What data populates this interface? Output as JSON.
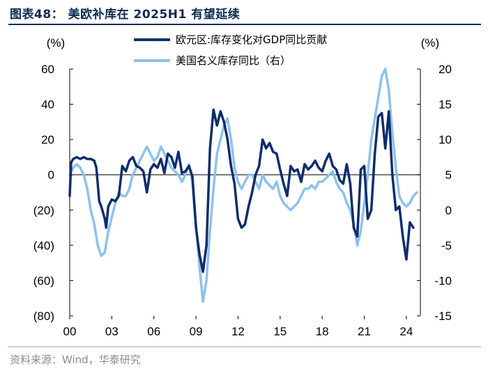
{
  "header": {
    "title": "图表48：  美欧补库在 2025H1 有望延续"
  },
  "footer": {
    "source": "资料来源：Wind，华泰研究"
  },
  "colors": {
    "series1": "#0d2d6b",
    "series2": "#8fc1ec",
    "title": "#0d2a54"
  },
  "chart_data": {
    "type": "line",
    "title": "美欧补库在 2025H1 有望延续",
    "y_left_unit": "(%)",
    "y_right_unit": "(%)",
    "y_left_range": [
      -80,
      60
    ],
    "y_right_range": [
      -15,
      20
    ],
    "y_left_ticks": [
      60,
      40,
      20,
      0,
      -20,
      -40,
      -60,
      -80
    ],
    "y_left_tick_labels": [
      "60",
      "40",
      "20",
      "0",
      "(20)",
      "(40)",
      "(60)",
      "(80)"
    ],
    "y_right_ticks": [
      20,
      15,
      10,
      5,
      0,
      -5,
      -10,
      -15
    ],
    "y_right_tick_labels": [
      "20",
      "15",
      "10",
      "5",
      "0",
      "-5",
      "-10",
      "-15"
    ],
    "x_range": [
      2000,
      2025
    ],
    "x_ticks": [
      2000,
      2003,
      2006,
      2009,
      2012,
      2015,
      2018,
      2021,
      2024
    ],
    "x_tick_labels": [
      "00",
      "03",
      "06",
      "09",
      "12",
      "15",
      "18",
      "21",
      "24"
    ],
    "legend": [
      "欧元区:库存变化对GDP同比贡献",
      "美国名义库存同比（右）"
    ],
    "series": [
      {
        "name": "欧元区:库存变化对GDP同比贡献",
        "axis": "left",
        "points": [
          [
            2000.0,
            -12
          ],
          [
            2000.1,
            7
          ],
          [
            2000.25,
            9
          ],
          [
            2000.5,
            10
          ],
          [
            2000.75,
            9
          ],
          [
            2001.0,
            10
          ],
          [
            2001.25,
            9
          ],
          [
            2001.5,
            9
          ],
          [
            2001.75,
            8
          ],
          [
            2001.9,
            4
          ],
          [
            2002.0,
            -5
          ],
          [
            2002.1,
            -15
          ],
          [
            2002.25,
            -18
          ],
          [
            2002.5,
            -25
          ],
          [
            2002.6,
            -30
          ],
          [
            2002.75,
            -18
          ],
          [
            2003.0,
            -14
          ],
          [
            2003.25,
            -15
          ],
          [
            2003.5,
            -12
          ],
          [
            2003.75,
            5
          ],
          [
            2004.0,
            2
          ],
          [
            2004.25,
            8
          ],
          [
            2004.5,
            10
          ],
          [
            2004.75,
            5
          ],
          [
            2005.0,
            4
          ],
          [
            2005.25,
            2
          ],
          [
            2005.5,
            -10
          ],
          [
            2005.75,
            3
          ],
          [
            2006.0,
            6
          ],
          [
            2006.25,
            4
          ],
          [
            2006.5,
            9
          ],
          [
            2006.75,
            1
          ],
          [
            2007.0,
            12
          ],
          [
            2007.25,
            10
          ],
          [
            2007.5,
            4
          ],
          [
            2007.75,
            13
          ],
          [
            2008.0,
            1
          ],
          [
            2008.25,
            2
          ],
          [
            2008.5,
            5
          ],
          [
            2008.75,
            -1
          ],
          [
            2009.0,
            -30
          ],
          [
            2009.25,
            -45
          ],
          [
            2009.5,
            -55
          ],
          [
            2009.75,
            -40
          ],
          [
            2010.0,
            15
          ],
          [
            2010.25,
            37
          ],
          [
            2010.5,
            28
          ],
          [
            2010.75,
            36
          ],
          [
            2011.0,
            30
          ],
          [
            2011.25,
            20
          ],
          [
            2011.5,
            5
          ],
          [
            2011.75,
            -5
          ],
          [
            2012.0,
            -25
          ],
          [
            2012.25,
            -30
          ],
          [
            2012.5,
            -28
          ],
          [
            2012.75,
            -18
          ],
          [
            2013.0,
            -10
          ],
          [
            2013.25,
            0
          ],
          [
            2013.5,
            5
          ],
          [
            2013.75,
            20
          ],
          [
            2014.0,
            15
          ],
          [
            2014.25,
            18
          ],
          [
            2014.5,
            13
          ],
          [
            2014.75,
            12
          ],
          [
            2015.0,
            3
          ],
          [
            2015.25,
            -5
          ],
          [
            2015.5,
            -12
          ],
          [
            2015.75,
            5
          ],
          [
            2016.0,
            2
          ],
          [
            2016.25,
            3
          ],
          [
            2016.5,
            -4
          ],
          [
            2016.75,
            6
          ],
          [
            2017.0,
            3
          ],
          [
            2017.25,
            5
          ],
          [
            2017.5,
            8
          ],
          [
            2017.75,
            4
          ],
          [
            2018.0,
            2
          ],
          [
            2018.25,
            8
          ],
          [
            2018.5,
            12
          ],
          [
            2018.75,
            5
          ],
          [
            2019.0,
            3
          ],
          [
            2019.25,
            -3
          ],
          [
            2019.5,
            -5
          ],
          [
            2019.75,
            6
          ],
          [
            2020.0,
            -5
          ],
          [
            2020.25,
            -30
          ],
          [
            2020.5,
            -35
          ],
          [
            2020.75,
            3
          ],
          [
            2021.0,
            5
          ],
          [
            2021.25,
            -25
          ],
          [
            2021.5,
            -20
          ],
          [
            2021.75,
            12
          ],
          [
            2022.0,
            33
          ],
          [
            2022.25,
            35
          ],
          [
            2022.5,
            15
          ],
          [
            2022.75,
            36
          ],
          [
            2023.0,
            0
          ],
          [
            2023.25,
            -20
          ],
          [
            2023.5,
            -18
          ],
          [
            2023.75,
            -35
          ],
          [
            2024.0,
            -48
          ],
          [
            2024.25,
            -27
          ],
          [
            2024.5,
            -30
          ]
        ]
      },
      {
        "name": "美国名义库存同比（右）",
        "axis": "right",
        "points": [
          [
            2000.0,
            5
          ],
          [
            2000.25,
            6
          ],
          [
            2000.5,
            6.5
          ],
          [
            2000.75,
            6
          ],
          [
            2001.0,
            5
          ],
          [
            2001.25,
            3
          ],
          [
            2001.5,
            0
          ],
          [
            2001.75,
            -2
          ],
          [
            2002.0,
            -5
          ],
          [
            2002.25,
            -6.5
          ],
          [
            2002.5,
            -6
          ],
          [
            2002.75,
            -3
          ],
          [
            2003.0,
            -1
          ],
          [
            2003.25,
            1
          ],
          [
            2003.5,
            2.5
          ],
          [
            2003.75,
            2
          ],
          [
            2004.0,
            2
          ],
          [
            2004.25,
            3
          ],
          [
            2004.5,
            5
          ],
          [
            2004.75,
            6
          ],
          [
            2005.0,
            7
          ],
          [
            2005.25,
            8
          ],
          [
            2005.5,
            9
          ],
          [
            2005.75,
            8
          ],
          [
            2006.0,
            7
          ],
          [
            2006.25,
            7.5
          ],
          [
            2006.5,
            9
          ],
          [
            2006.75,
            8
          ],
          [
            2007.0,
            7
          ],
          [
            2007.25,
            6
          ],
          [
            2007.5,
            5.5
          ],
          [
            2007.75,
            5
          ],
          [
            2008.0,
            4
          ],
          [
            2008.25,
            5
          ],
          [
            2008.5,
            6.5
          ],
          [
            2008.75,
            4
          ],
          [
            2009.0,
            -2
          ],
          [
            2009.25,
            -8
          ],
          [
            2009.5,
            -13
          ],
          [
            2009.75,
            -10
          ],
          [
            2010.0,
            -3
          ],
          [
            2010.25,
            3
          ],
          [
            2010.5,
            8
          ],
          [
            2010.75,
            10
          ],
          [
            2011.0,
            12
          ],
          [
            2011.25,
            13
          ],
          [
            2011.5,
            10
          ],
          [
            2011.75,
            6
          ],
          [
            2012.0,
            4
          ],
          [
            2012.25,
            3
          ],
          [
            2012.5,
            4
          ],
          [
            2012.75,
            5
          ],
          [
            2013.0,
            5
          ],
          [
            2013.25,
            4
          ],
          [
            2013.5,
            3
          ],
          [
            2013.75,
            5
          ],
          [
            2014.0,
            4
          ],
          [
            2014.25,
            3.5
          ],
          [
            2014.5,
            3
          ],
          [
            2014.75,
            4
          ],
          [
            2015.0,
            2
          ],
          [
            2015.25,
            1
          ],
          [
            2015.5,
            0.5
          ],
          [
            2015.75,
            0
          ],
          [
            2016.0,
            0.5
          ],
          [
            2016.25,
            1
          ],
          [
            2016.5,
            2
          ],
          [
            2016.75,
            3
          ],
          [
            2017.0,
            3
          ],
          [
            2017.25,
            3.5
          ],
          [
            2017.5,
            3
          ],
          [
            2017.75,
            4
          ],
          [
            2018.0,
            4
          ],
          [
            2018.25,
            4.5
          ],
          [
            2018.5,
            5
          ],
          [
            2018.75,
            5.5
          ],
          [
            2019.0,
            4
          ],
          [
            2019.25,
            3
          ],
          [
            2019.5,
            2.5
          ],
          [
            2019.75,
            1
          ],
          [
            2020.0,
            0
          ],
          [
            2020.25,
            -2
          ],
          [
            2020.5,
            -5
          ],
          [
            2020.75,
            -3
          ],
          [
            2021.0,
            1
          ],
          [
            2021.25,
            5
          ],
          [
            2021.5,
            10
          ],
          [
            2021.75,
            13
          ],
          [
            2022.0,
            16
          ],
          [
            2022.25,
            19
          ],
          [
            2022.5,
            20
          ],
          [
            2022.75,
            17
          ],
          [
            2023.0,
            11
          ],
          [
            2023.25,
            6
          ],
          [
            2023.5,
            2
          ],
          [
            2023.75,
            1
          ],
          [
            2024.0,
            0.5
          ],
          [
            2024.25,
            1
          ],
          [
            2024.5,
            2
          ],
          [
            2024.75,
            2.5
          ]
        ]
      }
    ]
  }
}
